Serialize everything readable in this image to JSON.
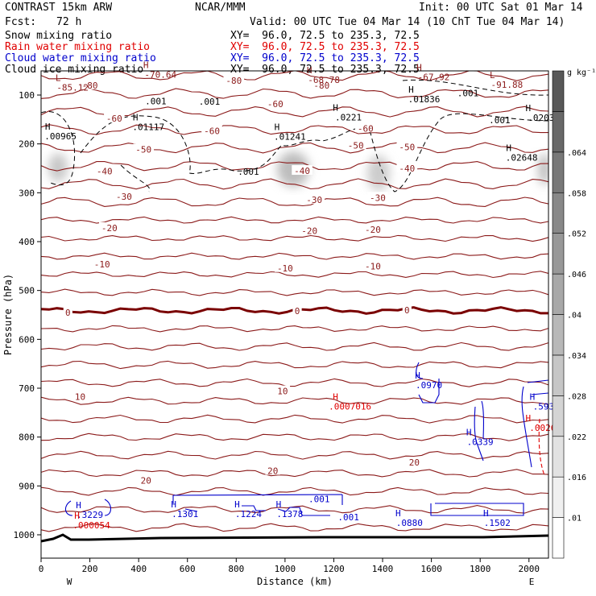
{
  "header": {
    "model": "CONTRAST 15km ARW",
    "center": "NCAR/MMM",
    "init": "Init: 00 UTC Sat 01 Mar 14",
    "fcst_label": "Fcst:",
    "fcst_value": "72 h",
    "valid": "Valid: 00 UTC Tue 04 Mar 14 (10 ChT Tue 04 Mar 14)"
  },
  "legend": [
    {
      "name": "Snow mixing ratio",
      "xy": "XY=  96.0, 72.5 to 235.3, 72.5",
      "color": "#000000"
    },
    {
      "name": "Rain water mixing ratio",
      "xy": "XY=  96.0, 72.5 to 235.3, 72.5",
      "color": "#e00000"
    },
    {
      "name": "Cloud water mixing ratio",
      "xy": "XY=  96.0, 72.5 to 235.3, 72.5",
      "color": "#0000cc"
    },
    {
      "name": "Cloud ice mixing ratio",
      "xy": "XY=  96.0, 72.5 to 235.3, 72.5",
      "color": "#000000"
    }
  ],
  "colors": {
    "temperature_contour": "#8b1a1a",
    "freezing_line": "#7a0000",
    "cloud_water": "#0000cc",
    "rain": "#e00000",
    "axis": "#000000"
  },
  "chart_data": {
    "type": "cross-section",
    "xlabel": "Distance (km)",
    "ylabel": "Pressure (hPa)",
    "xlim": [
      0,
      2080
    ],
    "ylim": [
      1050,
      50
    ],
    "x_ticks": [
      0,
      200,
      400,
      600,
      800,
      1000,
      1200,
      1400,
      1600,
      1800,
      2000
    ],
    "y_ticks": [
      100,
      200,
      300,
      400,
      500,
      600,
      700,
      800,
      900,
      1000
    ],
    "x_end_labels": {
      "left": "W",
      "right": "E"
    },
    "colorbar": {
      "unit": "g kg⁻¹",
      "levels": [
        ".01",
        ".016",
        ".022",
        ".028",
        ".034",
        ".04",
        ".046",
        ".052",
        ".058",
        ".064"
      ],
      "shade_hex": [
        "#ffffff",
        "#f0f0f0",
        "#e2e2e2",
        "#d4d4d4",
        "#c6c6c6",
        "#b8b8b8",
        "#a8a8a8",
        "#989898",
        "#888888",
        "#787878",
        "#686868",
        "#585858"
      ]
    },
    "temperature_labels": [
      {
        "x": 300,
        "p": 148,
        "text": "-60"
      },
      {
        "x": 700,
        "p": 173,
        "text": "-60"
      },
      {
        "x": 1330,
        "p": 168,
        "text": "-60"
      },
      {
        "x": 420,
        "p": 211,
        "text": "-50"
      },
      {
        "x": 1290,
        "p": 203,
        "text": "-50"
      },
      {
        "x": 1500,
        "p": 206,
        "text": "-50"
      },
      {
        "x": 260,
        "p": 256,
        "text": "-40"
      },
      {
        "x": 1070,
        "p": 255,
        "text": "-40"
      },
      {
        "x": 1500,
        "p": 250,
        "text": "-40"
      },
      {
        "x": 340,
        "p": 308,
        "text": "-30"
      },
      {
        "x": 1120,
        "p": 314,
        "text": "-30"
      },
      {
        "x": 1380,
        "p": 310,
        "text": "-30"
      },
      {
        "x": 280,
        "p": 372,
        "text": "-20"
      },
      {
        "x": 1100,
        "p": 378,
        "text": "-20"
      },
      {
        "x": 1360,
        "p": 375,
        "text": "-20"
      },
      {
        "x": 250,
        "p": 446,
        "text": "-10"
      },
      {
        "x": 1000,
        "p": 454,
        "text": "-10"
      },
      {
        "x": 1360,
        "p": 450,
        "text": "-10"
      },
      {
        "x": 110,
        "p": 545,
        "text": "0"
      },
      {
        "x": 1050,
        "p": 542,
        "text": "0"
      },
      {
        "x": 1500,
        "p": 540,
        "text": "0"
      },
      {
        "x": 160,
        "p": 717,
        "text": "10"
      },
      {
        "x": 990,
        "p": 706,
        "text": "10"
      },
      {
        "x": 430,
        "p": 889,
        "text": "20"
      },
      {
        "x": 950,
        "p": 869,
        "text": "20"
      },
      {
        "x": 1530,
        "p": 852,
        "text": "20"
      },
      {
        "x": 200,
        "p": 80,
        "text": "-80"
      },
      {
        "x": 790,
        "p": 70,
        "text": "-80"
      },
      {
        "x": 1150,
        "p": 80,
        "text": "-80"
      },
      {
        "x": 960,
        "p": 118,
        "text": "-60"
      }
    ],
    "temperature_extrema": [
      {
        "x": 70,
        "p": 81,
        "kind": "L",
        "value": "-85.12"
      },
      {
        "x": 430,
        "p": 55,
        "kind": "H",
        "value": "-70.64"
      },
      {
        "x": 1100,
        "p": 65,
        "kind": "H",
        "value": "-68.78"
      },
      {
        "x": 1550,
        "p": 60,
        "kind": "H",
        "value": "-67.92"
      },
      {
        "x": 1850,
        "p": 75,
        "kind": "L",
        "value": "-91.88"
      }
    ],
    "ice_maxima": [
      {
        "x": 60,
        "p": 184,
        "value": ".00965"
      },
      {
        "x": 420,
        "p": 165,
        "value": ".01117"
      },
      {
        "x": 1000,
        "p": 185,
        "value": ".01241"
      },
      {
        "x": 1240,
        "p": 145,
        "value": ".0221"
      },
      {
        "x": 1550,
        "p": 108,
        "value": ".01836"
      },
      {
        "x": 2030,
        "p": 146,
        "value": ".0203"
      },
      {
        "x": 1950,
        "p": 228,
        "value": ".02648"
      }
    ],
    "ice_contour_labels": [
      {
        "x": 470,
        "p": 112,
        "text": ".001"
      },
      {
        "x": 690,
        "p": 113,
        "text": ".001"
      },
      {
        "x": 850,
        "p": 257,
        "text": ".001"
      },
      {
        "x": 1750,
        "p": 96,
        "text": ".001"
      },
      {
        "x": 1880,
        "p": 151,
        "text": ".001"
      }
    ],
    "cloud_water_maxima": [
      {
        "x": 180,
        "p": 959,
        "value": ".3229"
      },
      {
        "x": 570,
        "p": 957,
        "value": ".1301"
      },
      {
        "x": 830,
        "p": 957,
        "value": ".1224"
      },
      {
        "x": 1000,
        "p": 957,
        "value": ".1378"
      },
      {
        "x": 1570,
        "p": 693,
        "value": ".0970"
      },
      {
        "x": 1780,
        "p": 810,
        "value": ".0339"
      },
      {
        "x": 1490,
        "p": 975,
        "value": ".0880"
      },
      {
        "x": 1850,
        "p": 975,
        "value": ".1502"
      },
      {
        "x": 2040,
        "p": 737,
        "value": ".593"
      }
    ],
    "cloud_water_labels": [
      {
        "x": 1140,
        "p": 927,
        "text": ".001"
      },
      {
        "x": 1260,
        "p": 964,
        "text": ".001"
      }
    ],
    "rain_maxima": [
      {
        "x": 180,
        "p": 980,
        "value": ".000054"
      },
      {
        "x": 1240,
        "p": 737,
        "value": ".0007016"
      },
      {
        "x": 2030,
        "p": 781,
        "value": ".0026"
      }
    ]
  }
}
